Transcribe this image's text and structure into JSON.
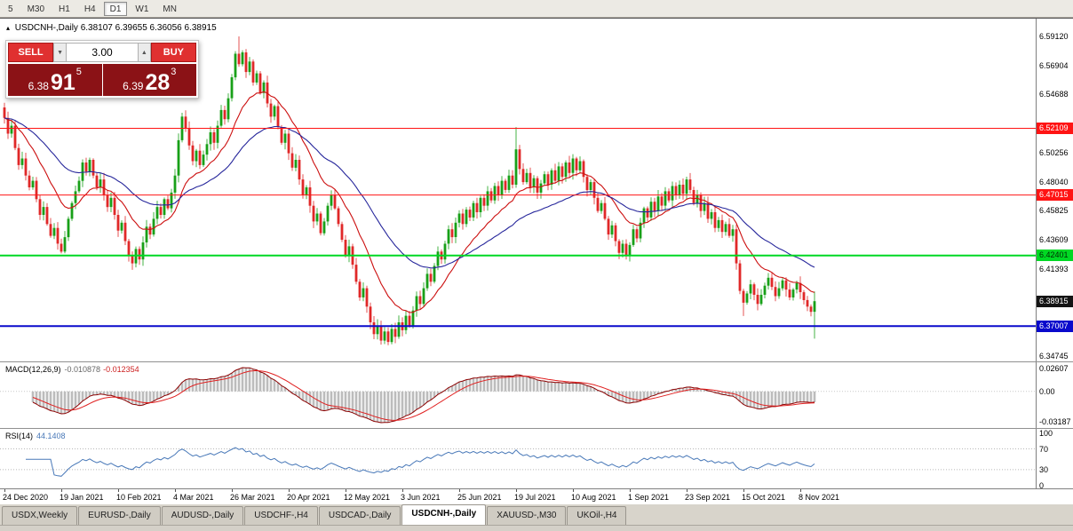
{
  "toolbar": {
    "periods": [
      {
        "label": "5",
        "active": false
      },
      {
        "label": "M30",
        "active": false
      },
      {
        "label": "H1",
        "active": false
      },
      {
        "label": "H4",
        "active": false
      },
      {
        "label": "D1",
        "active": true
      },
      {
        "label": "W1",
        "active": false
      },
      {
        "label": "MN",
        "active": false
      }
    ]
  },
  "chart": {
    "collapse_icon": "▴",
    "title_symbol": "USDCNH-,Daily",
    "title_ohlc": "6.38107 6.39655 6.36056 6.38915"
  },
  "trade_panel": {
    "sell_label": "SELL",
    "buy_label": "BUY",
    "volume": "3.00",
    "volume_down_icon": "▼",
    "volume_up_icon": "▲",
    "sell_price": {
      "head": "6.38",
      "big": "91",
      "sup": "5"
    },
    "buy_price": {
      "head": "6.39",
      "big": "28",
      "sup": "3"
    }
  },
  "price_axis": {
    "ticks": [
      {
        "label": "6.59120",
        "value": 6.5912
      },
      {
        "label": "6.56904",
        "value": 6.56904
      },
      {
        "label": "6.54688",
        "value": 6.54688
      },
      {
        "label": "6.50256",
        "value": 6.50256
      },
      {
        "label": "6.48040",
        "value": 6.4804
      },
      {
        "label": "6.45825",
        "value": 6.45825
      },
      {
        "label": "6.43609",
        "value": 6.43609
      },
      {
        "label": "6.41393",
        "value": 6.41393
      },
      {
        "label": "6.34745",
        "value": 6.34745
      }
    ],
    "badges": [
      {
        "text": "6.52109",
        "value": 6.52109,
        "bg": "#ff1414",
        "fg": "#ffffff"
      },
      {
        "text": "6.47015",
        "value": 6.47015,
        "bg": "#ff1414",
        "fg": "#ffffff"
      },
      {
        "text": "6.42401",
        "value": 6.42401,
        "bg": "#00d824",
        "fg": "#002b00"
      },
      {
        "text": "6.38915",
        "value": 6.38915,
        "bg": "#141414",
        "fg": "#ffffff"
      },
      {
        "text": "6.37007",
        "value": 6.37007,
        "bg": "#0a0acc",
        "fg": "#ffffff"
      }
    ]
  },
  "chart_data": {
    "type": "candlestick",
    "symbol": "USDCNH-",
    "timeframe": "Daily",
    "ohlc_current": {
      "open": 6.38107,
      "high": 6.39655,
      "low": 6.36056,
      "close": 6.38915
    },
    "x_labels": [
      "24 Dec 2020",
      "19 Jan 2021",
      "10 Feb 2021",
      "4 Mar 2021",
      "26 Mar 2021",
      "20 Apr 2021",
      "12 May 2021",
      "3 Jun 2021",
      "25 Jun 2021",
      "19 Jul 2021",
      "10 Aug 2021",
      "1 Sep 2021",
      "23 Sep 2021",
      "15 Oct 2021",
      "8 Nov 2021"
    ],
    "open_first": 6.537,
    "closes": [
      6.529,
      6.517,
      6.523,
      6.506,
      6.493,
      6.498,
      6.485,
      6.476,
      6.481,
      6.467,
      6.455,
      6.461,
      6.448,
      6.439,
      6.445,
      6.433,
      6.427,
      6.438,
      6.452,
      6.464,
      6.473,
      6.481,
      6.495,
      6.488,
      6.497,
      6.485,
      6.476,
      6.482,
      6.47,
      6.461,
      6.468,
      6.455,
      6.443,
      6.449,
      6.435,
      6.424,
      6.418,
      6.429,
      6.421,
      6.434,
      6.446,
      6.44,
      6.452,
      6.461,
      6.455,
      6.467,
      6.46,
      6.472,
      6.485,
      6.512,
      6.53,
      6.521,
      6.508,
      6.496,
      6.504,
      6.493,
      6.501,
      6.509,
      6.518,
      6.51,
      6.523,
      6.535,
      6.528,
      6.544,
      6.56,
      6.578,
      6.57,
      6.579,
      6.564,
      6.572,
      6.556,
      6.563,
      6.548,
      6.556,
      6.54,
      6.53,
      6.538,
      6.522,
      6.51,
      6.517,
      6.502,
      6.491,
      6.497,
      6.482,
      6.47,
      6.476,
      6.462,
      6.45,
      6.456,
      6.441,
      6.45,
      6.462,
      6.47,
      6.46,
      6.448,
      6.436,
      6.424,
      6.431,
      6.417,
      6.404,
      6.392,
      6.399,
      6.385,
      6.373,
      6.364,
      6.37,
      6.359,
      6.366,
      6.358,
      6.368,
      6.362,
      6.373,
      6.367,
      6.378,
      6.37,
      6.382,
      6.393,
      6.387,
      6.399,
      6.41,
      6.404,
      6.416,
      6.427,
      6.421,
      6.433,
      6.444,
      6.438,
      6.449,
      6.456,
      6.448,
      6.459,
      6.453,
      6.464,
      6.457,
      6.468,
      6.462,
      6.473,
      6.466,
      6.477,
      6.47,
      6.481,
      6.474,
      6.485,
      6.478,
      6.505,
      6.49,
      6.48,
      6.487,
      6.476,
      6.483,
      6.472,
      6.479,
      6.486,
      6.478,
      6.489,
      6.481,
      6.492,
      6.484,
      6.495,
      6.487,
      6.498,
      6.489,
      6.496,
      6.484,
      6.474,
      6.48,
      6.468,
      6.458,
      6.464,
      6.452,
      6.44,
      6.447,
      6.435,
      6.426,
      6.433,
      6.424,
      6.432,
      6.444,
      6.437,
      6.449,
      6.46,
      6.453,
      6.465,
      6.458,
      6.469,
      6.462,
      6.473,
      6.466,
      6.477,
      6.47,
      6.478,
      6.471,
      6.482,
      6.474,
      6.464,
      6.47,
      6.458,
      6.464,
      6.452,
      6.457,
      6.445,
      6.451,
      6.442,
      6.448,
      6.439,
      6.444,
      6.418,
      6.397,
      6.388,
      6.395,
      6.402,
      6.394,
      6.387,
      6.394,
      6.401,
      6.407,
      6.4,
      6.393,
      6.399,
      6.405,
      6.398,
      6.392,
      6.398,
      6.403,
      6.396,
      6.39,
      6.385,
      6.381,
      6.38915
    ],
    "candle_overrides": {
      "0": {
        "o": 6.537
      },
      "66": {
        "h": 6.5912
      },
      "106": {
        "l": 6.356
      },
      "144": {
        "h": 6.522
      },
      "208": {
        "l": 6.3778
      },
      "228": {
        "o": 6.38107,
        "h": 6.39655,
        "l": 6.36056,
        "c": 6.38915
      }
    },
    "hlines": [
      {
        "value": 6.52109,
        "color": "#ff1414",
        "width": 1
      },
      {
        "value": 6.47015,
        "color": "#ff1414",
        "width": 1
      },
      {
        "value": 6.42401,
        "color": "#00d824",
        "width": 2
      },
      {
        "value": 6.37007,
        "color": "#0a0acc",
        "width": 2
      }
    ],
    "colors": {
      "up": "#18a018",
      "down": "#e02828",
      "ma_fast": "#cc1010",
      "ma_slow": "#26269b",
      "macd_hist": "#bcbcbc",
      "macd_line": "#8b0000",
      "macd_signal": "#e02020",
      "rsi": "#4878b8"
    },
    "ma_fast_period": 15,
    "ma_slow_period": 40,
    "macd": {
      "label": "MACD(12,26,9)",
      "value_main": "-0.010878",
      "value_signal": "-0.012354",
      "fast": 12,
      "slow": 26,
      "signal": 9,
      "axis_labels": [
        "0.02607",
        "0.00",
        "-0.03187"
      ]
    },
    "rsi": {
      "label": "RSI(14)",
      "value": "44.1408",
      "period": 14,
      "levels": [
        70,
        30
      ],
      "axis_labels": [
        "100",
        "70",
        "30",
        "0"
      ]
    }
  },
  "tabs": [
    {
      "label": "USDX,Weekly",
      "active": false
    },
    {
      "label": "EURUSD-,Daily",
      "active": false
    },
    {
      "label": "AUDUSD-,Daily",
      "active": false
    },
    {
      "label": "USDCHF-,H4",
      "active": false
    },
    {
      "label": "USDCAD-,Daily",
      "active": false
    },
    {
      "label": "USDCNH-,Daily",
      "active": true
    },
    {
      "label": "XAUUSD-,M30",
      "active": false
    },
    {
      "label": "UKOil-,H4",
      "active": false
    }
  ]
}
